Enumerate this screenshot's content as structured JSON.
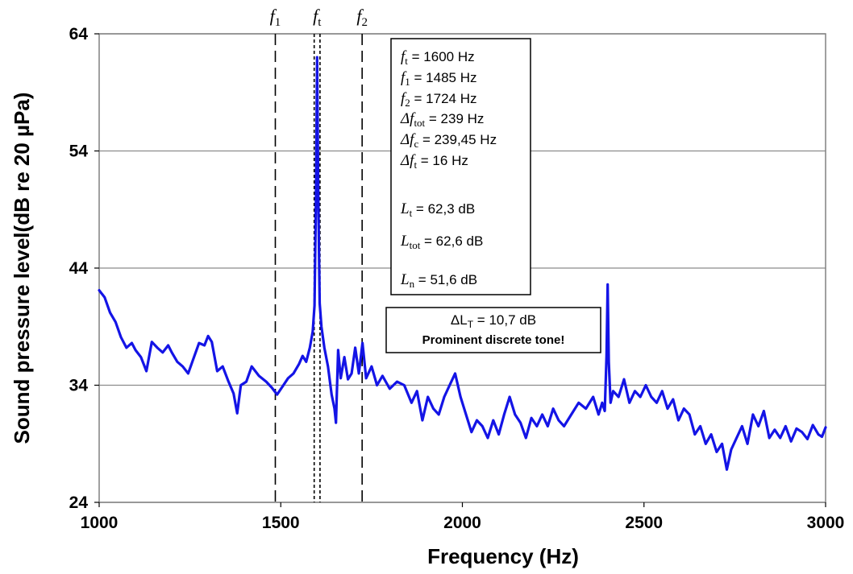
{
  "chart_data": {
    "type": "line",
    "xlabel": "Frequency (Hz)",
    "ylabel": "Sound pressure level(dB re 20 µPa)",
    "xlim": [
      1000,
      3000
    ],
    "ylim": [
      24,
      64
    ],
    "xticks": [
      1000,
      1500,
      2000,
      2500,
      3000
    ],
    "yticks": [
      24,
      34,
      44,
      54,
      64
    ],
    "grid": "horizontal",
    "line_color": "#1414e6",
    "series": [
      {
        "points": [
          [
            1000,
            42.1
          ],
          [
            1015,
            41.5
          ],
          [
            1030,
            40.2
          ],
          [
            1045,
            39.4
          ],
          [
            1060,
            38.1
          ],
          [
            1075,
            37.2
          ],
          [
            1090,
            37.6
          ],
          [
            1100,
            37.0
          ],
          [
            1115,
            36.4
          ],
          [
            1130,
            35.2
          ],
          [
            1145,
            37.7
          ],
          [
            1160,
            37.2
          ],
          [
            1175,
            36.8
          ],
          [
            1190,
            37.4
          ],
          [
            1200,
            36.8
          ],
          [
            1215,
            36.0
          ],
          [
            1230,
            35.6
          ],
          [
            1245,
            35.0
          ],
          [
            1260,
            36.3
          ],
          [
            1275,
            37.6
          ],
          [
            1290,
            37.4
          ],
          [
            1300,
            38.2
          ],
          [
            1310,
            37.7
          ],
          [
            1325,
            35.2
          ],
          [
            1340,
            35.6
          ],
          [
            1355,
            34.4
          ],
          [
            1370,
            33.3
          ],
          [
            1380,
            31.6
          ],
          [
            1390,
            34.0
          ],
          [
            1405,
            34.3
          ],
          [
            1420,
            35.6
          ],
          [
            1440,
            34.8
          ],
          [
            1460,
            34.3
          ],
          [
            1475,
            33.8
          ],
          [
            1490,
            33.2
          ],
          [
            1505,
            33.9
          ],
          [
            1520,
            34.6
          ],
          [
            1535,
            35.0
          ],
          [
            1550,
            35.8
          ],
          [
            1560,
            36.5
          ],
          [
            1570,
            36.0
          ],
          [
            1580,
            37.2
          ],
          [
            1588,
            38.6
          ],
          [
            1593,
            40.8
          ],
          [
            1597,
            50.0
          ],
          [
            1600,
            62.0
          ],
          [
            1603,
            50.5
          ],
          [
            1607,
            41.0
          ],
          [
            1612,
            39.0
          ],
          [
            1620,
            37.2
          ],
          [
            1630,
            35.6
          ],
          [
            1640,
            33.2
          ],
          [
            1648,
            32.0
          ],
          [
            1652,
            30.8
          ],
          [
            1658,
            37.0
          ],
          [
            1665,
            34.6
          ],
          [
            1675,
            36.4
          ],
          [
            1685,
            34.5
          ],
          [
            1695,
            35.0
          ],
          [
            1705,
            37.2
          ],
          [
            1715,
            35.0
          ],
          [
            1725,
            37.6
          ],
          [
            1735,
            34.6
          ],
          [
            1750,
            35.6
          ],
          [
            1765,
            34.0
          ],
          [
            1780,
            34.8
          ],
          [
            1800,
            33.7
          ],
          [
            1820,
            34.3
          ],
          [
            1840,
            34.0
          ],
          [
            1860,
            32.5
          ],
          [
            1875,
            33.5
          ],
          [
            1890,
            31.0
          ],
          [
            1905,
            33.0
          ],
          [
            1920,
            32.0
          ],
          [
            1935,
            31.5
          ],
          [
            1950,
            33.0
          ],
          [
            1965,
            34.0
          ],
          [
            1980,
            35.0
          ],
          [
            1995,
            33.0
          ],
          [
            2010,
            31.5
          ],
          [
            2025,
            30.0
          ],
          [
            2040,
            31.0
          ],
          [
            2055,
            30.5
          ],
          [
            2070,
            29.5
          ],
          [
            2085,
            31.0
          ],
          [
            2100,
            29.8
          ],
          [
            2115,
            31.5
          ],
          [
            2130,
            33.0
          ],
          [
            2145,
            31.5
          ],
          [
            2160,
            30.8
          ],
          [
            2175,
            29.5
          ],
          [
            2190,
            31.2
          ],
          [
            2205,
            30.5
          ],
          [
            2220,
            31.5
          ],
          [
            2235,
            30.5
          ],
          [
            2250,
            32.0
          ],
          [
            2265,
            31.0
          ],
          [
            2280,
            30.5
          ],
          [
            2300,
            31.5
          ],
          [
            2320,
            32.5
          ],
          [
            2340,
            32.0
          ],
          [
            2360,
            33.0
          ],
          [
            2375,
            31.5
          ],
          [
            2385,
            32.5
          ],
          [
            2392,
            31.8
          ],
          [
            2397,
            36.5
          ],
          [
            2400,
            42.6
          ],
          [
            2403,
            36.0
          ],
          [
            2408,
            32.5
          ],
          [
            2415,
            33.5
          ],
          [
            2430,
            33.0
          ],
          [
            2445,
            34.5
          ],
          [
            2460,
            32.5
          ],
          [
            2475,
            33.5
          ],
          [
            2490,
            33.0
          ],
          [
            2505,
            34.0
          ],
          [
            2520,
            33.0
          ],
          [
            2535,
            32.5
          ],
          [
            2550,
            33.5
          ],
          [
            2565,
            32.0
          ],
          [
            2580,
            32.8
          ],
          [
            2595,
            31.0
          ],
          [
            2610,
            32.0
          ],
          [
            2625,
            31.5
          ],
          [
            2640,
            29.8
          ],
          [
            2655,
            30.5
          ],
          [
            2670,
            29.0
          ],
          [
            2685,
            29.8
          ],
          [
            2700,
            28.3
          ],
          [
            2715,
            29.0
          ],
          [
            2728,
            26.8
          ],
          [
            2740,
            28.5
          ],
          [
            2755,
            29.5
          ],
          [
            2770,
            30.5
          ],
          [
            2785,
            29.0
          ],
          [
            2800,
            31.5
          ],
          [
            2815,
            30.5
          ],
          [
            2830,
            31.8
          ],
          [
            2845,
            29.5
          ],
          [
            2860,
            30.2
          ],
          [
            2875,
            29.5
          ],
          [
            2890,
            30.5
          ],
          [
            2905,
            29.2
          ],
          [
            2920,
            30.3
          ],
          [
            2935,
            30.0
          ],
          [
            2950,
            29.4
          ],
          [
            2965,
            30.6
          ],
          [
            2980,
            29.8
          ],
          [
            2990,
            29.6
          ],
          [
            3000,
            30.4
          ]
        ]
      }
    ],
    "vlines": [
      {
        "label_main": "f",
        "label_sub": "1",
        "x": 1485,
        "style": "dashed"
      },
      {
        "label_main": "f",
        "label_sub": "t",
        "x": 1600,
        "style": "dotted-pair",
        "x_left": 1592,
        "x_right": 1608
      },
      {
        "label_main": "f",
        "label_sub": "2",
        "x": 1724,
        "style": "dashed"
      }
    ],
    "info_box": {
      "lines": [
        {
          "sym": "f",
          "sub": "t",
          "rest": " = 1600 Hz"
        },
        {
          "sym": "f",
          "sub": "1",
          "rest": " = 1485 Hz"
        },
        {
          "sym": "f",
          "sub": "2",
          "rest": " = 1724 Hz"
        },
        {
          "sym": "Δf",
          "sub": "tot",
          "rest": " = 239 Hz"
        },
        {
          "sym": "Δf",
          "sub": "c",
          "rest": " = 239,45 Hz"
        },
        {
          "sym": "Δf",
          "sub": "t",
          "rest": " = 16 Hz"
        },
        {
          "sym": "L",
          "sub": "t",
          "rest": " = 62,3 dB"
        },
        {
          "sym": "L",
          "sub": "tot",
          "rest": " = 62,6 dB"
        },
        {
          "sym": "L",
          "sub": "n",
          "rest": " = 51,6 dB"
        }
      ]
    },
    "tone_box": {
      "line1_sym": "ΔL",
      "line1_sub": "T",
      "line1_rest": " = 10,7 dB",
      "line2": "Prominent discrete tone!"
    }
  }
}
